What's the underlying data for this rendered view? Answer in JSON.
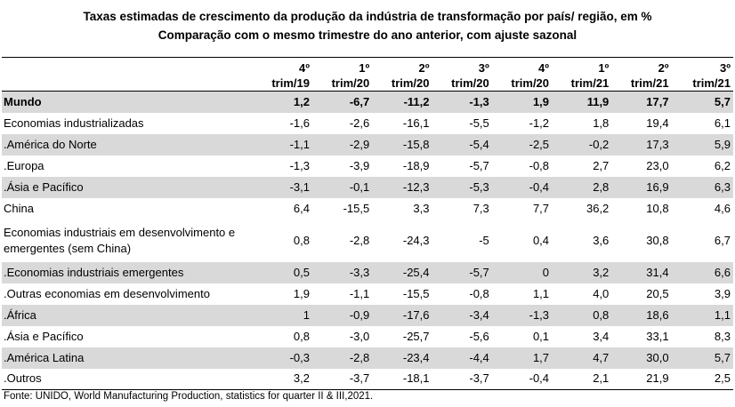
{
  "title": {
    "line1": "Taxas estimadas de crescimento da produção da indústria de transformação por país/ região, em %",
    "line2": "Comparação com o mesmo trimestre do ano anterior, com ajuste sazonal"
  },
  "columns": [
    {
      "top": "4º",
      "bottom": "trim/19"
    },
    {
      "top": "1º",
      "bottom": "trim/20"
    },
    {
      "top": "2º",
      "bottom": "trim/20"
    },
    {
      "top": "3º",
      "bottom": "trim/20"
    },
    {
      "top": "4º",
      "bottom": "trim/20"
    },
    {
      "top": "1º",
      "bottom": "trim/21"
    },
    {
      "top": "2º",
      "bottom": "trim/21"
    },
    {
      "top": "3º",
      "bottom": "trim/21"
    }
  ],
  "rows": [
    {
      "label": "Mundo",
      "values": [
        "1,2",
        "-6,7",
        "-11,2",
        "-1,3",
        "1,9",
        "11,9",
        "17,7",
        "5,7"
      ]
    },
    {
      "label": "Economias industrializadas",
      "values": [
        "-1,6",
        "-2,6",
        "-16,1",
        "-5,5",
        "-1,2",
        "1,8",
        "19,4",
        "6,1"
      ]
    },
    {
      "label": ".América do Norte",
      "values": [
        "-1,1",
        "-2,9",
        "-15,8",
        "-5,4",
        "-2,5",
        "-0,2",
        "17,3",
        "5,9"
      ]
    },
    {
      "label": ".Europa",
      "values": [
        "-1,3",
        "-3,9",
        "-18,9",
        "-5,7",
        "-0,8",
        "2,7",
        "23,0",
        "6,2"
      ]
    },
    {
      "label": ".Ásia e Pacífico",
      "values": [
        "-3,1",
        "-0,1",
        "-12,3",
        "-5,3",
        "-0,4",
        "2,8",
        "16,9",
        "6,3"
      ]
    },
    {
      "label": "China",
      "values": [
        "6,4",
        "-15,5",
        "3,3",
        "7,3",
        "7,7",
        "36,2",
        "10,8",
        "4,6"
      ]
    },
    {
      "label": "Economias industriais em desenvolvimento e emergentes (sem China)",
      "values": [
        "0,8",
        "-2,8",
        "-24,3",
        "-5",
        "0,4",
        "3,6",
        "30,8",
        "6,7"
      ]
    },
    {
      "label": ".Economias industriais emergentes",
      "values": [
        "0,5",
        "-3,3",
        "-25,4",
        "-5,7",
        "0",
        "3,2",
        "31,4",
        "6,6"
      ]
    },
    {
      "label": ".Outras economias em desenvolvimento",
      "values": [
        "1,9",
        "-1,1",
        "-15,5",
        "-0,8",
        "1,1",
        "4,0",
        "20,5",
        "3,9"
      ]
    },
    {
      "label": ".África",
      "values": [
        "1",
        "-0,9",
        "-17,6",
        "-3,4",
        "-1,3",
        "0,8",
        "18,6",
        "1,1"
      ]
    },
    {
      "label": ".Ásia e Pacífico",
      "values": [
        "0,8",
        "-3,0",
        "-25,7",
        "-5,6",
        "0,1",
        "3,4",
        "33,1",
        "8,3"
      ]
    },
    {
      "label": ".América Latina",
      "values": [
        "-0,3",
        "-2,8",
        "-23,4",
        "-4,4",
        "1,7",
        "4,7",
        "30,0",
        "5,7"
      ]
    },
    {
      "label": ".Outros",
      "values": [
        "3,2",
        "-3,7",
        "-18,1",
        "-3,7",
        "-0,4",
        "2,1",
        "21,9",
        "2,5"
      ]
    }
  ],
  "source": "Fonte: UNIDO, World Manufacturing Production, statistics for quarter II & III,2021."
}
